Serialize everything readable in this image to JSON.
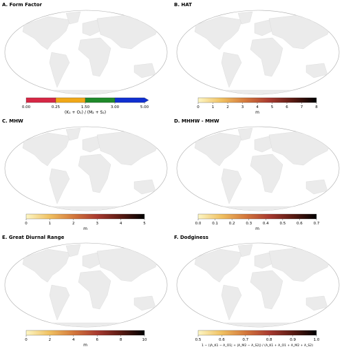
{
  "panels": [
    {
      "title": "A. Form Factor",
      "colorbar": {
        "type": "discrete",
        "colors": [
          "#d62745",
          "#f0a818",
          "#1f8a2a",
          "#1030d0"
        ],
        "ticks": [
          {
            "value": 0,
            "label": "0.00"
          },
          {
            "value": 0.25,
            "label": "0.25"
          },
          {
            "value": 1.5,
            "label": "1.50"
          },
          {
            "value": 3,
            "label": "3.00"
          },
          {
            "value": 5,
            "label": "5.00"
          }
        ],
        "label": "(K₁ + O₁) / (M₂ + S₂)"
      }
    },
    {
      "title": "B. HAT",
      "colorbar": {
        "type": "continuous",
        "colors": [
          "#fdf6c4",
          "#f0c060",
          "#d4783c",
          "#a83a30",
          "#5a1a12",
          "#000000"
        ],
        "lim": [
          0,
          8
        ],
        "ticks": [
          0,
          1,
          2,
          3,
          4,
          5,
          6,
          7,
          8
        ],
        "label": "m"
      }
    },
    {
      "title": "C. MHW",
      "colorbar": {
        "type": "continuous",
        "colors": [
          "#fdf6c4",
          "#f0c060",
          "#d4783c",
          "#a83a30",
          "#5a1a12",
          "#000000"
        ],
        "lim": [
          0,
          5
        ],
        "ticks": [
          0,
          1,
          2,
          3,
          4,
          5
        ],
        "label": "m"
      }
    },
    {
      "title": "D. MHHW - MHW",
      "colorbar": {
        "type": "continuous",
        "colors": [
          "#fdf6c4",
          "#f0c060",
          "#d4783c",
          "#a83a30",
          "#5a1a12",
          "#000000"
        ],
        "lim": [
          0,
          0.7
        ],
        "ticks": [
          {
            "value": 0,
            "label": "0.0"
          },
          0.1,
          0.2,
          0.3,
          0.4,
          0.5,
          0.6,
          0.7
        ],
        "label": "m"
      }
    },
    {
      "title": "E. Great Diurnal Range",
      "colorbar": {
        "type": "continuous",
        "colors": [
          "#fdf6c4",
          "#f0c060",
          "#d4783c",
          "#a83a30",
          "#5a1a12",
          "#000000"
        ],
        "lim": [
          0,
          10
        ],
        "ticks": [
          0,
          2,
          4,
          6,
          8,
          10
        ],
        "label": "m"
      }
    },
    {
      "title": "F. Dodginess",
      "colorbar": {
        "type": "continuous",
        "colors": [
          "#fdf6c4",
          "#f0c060",
          "#d4783c",
          "#a83a30",
          "#5a1a12",
          "#000000"
        ],
        "lim": [
          0.5,
          1
        ],
        "ticks": [
          0.5,
          0.6,
          0.7,
          0.8,
          0.9,
          {
            "value": 1,
            "label": "1.0"
          }
        ],
        "label": "1 − (|A_K1 − A_O1| + |A_M2 − A_S2|) / (A_K1 + A_O1 + A_M2 + A_S2)"
      }
    }
  ]
}
